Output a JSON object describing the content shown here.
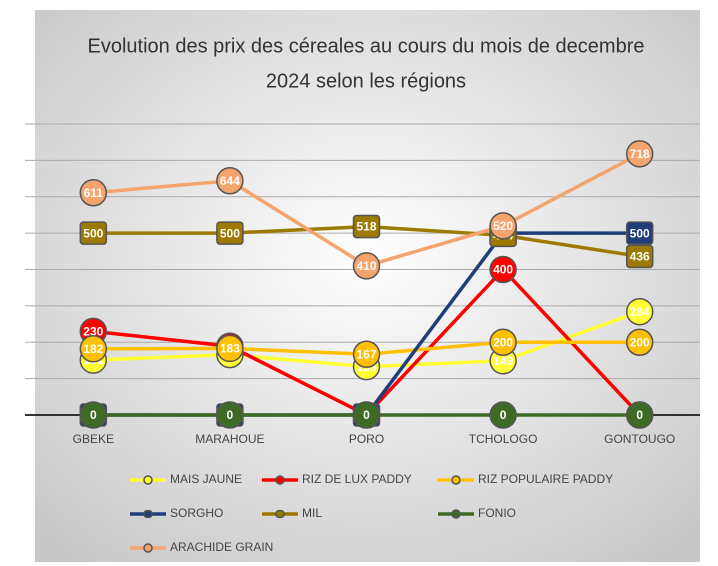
{
  "chart_data": {
    "type": "line",
    "title": [
      "Evolution des prix des céreales au cours du mois de decembre",
      "2024 selon les régions"
    ],
    "categories": [
      "GBEKE",
      "MARAHOUE",
      "PORO",
      "TCHOLOGO",
      "GONTOUGO"
    ],
    "ylim": [
      0,
      800
    ],
    "yticks": [
      0,
      100,
      200,
      300,
      400,
      500,
      600,
      700,
      800
    ],
    "grid": true,
    "legend": "bottom",
    "series": [
      {
        "name": "MAIS JAUNE",
        "color": "#ffff33",
        "marker": "circle",
        "values": [
          151,
          166,
          133,
          149,
          284
        ]
      },
      {
        "name": "RIZ DE LUX PADDY",
        "color": "#ff0000",
        "marker": "circle",
        "values": [
          230,
          189,
          0,
          400,
          0
        ]
      },
      {
        "name": "RIZ POPULAIRE PADDY",
        "color": "#ffc000",
        "marker": "circle",
        "values": [
          182,
          183,
          167,
          200,
          200
        ]
      },
      {
        "name": "SORGHO",
        "color": "#1f3d7a",
        "marker": "square",
        "values": [
          0,
          0,
          0,
          500,
          500
        ]
      },
      {
        "name": "MIL",
        "color": "#9c7a00",
        "marker": "square",
        "values": [
          500,
          500,
          518,
          494,
          436
        ]
      },
      {
        "name": "FONIO",
        "color": "#3d6b25",
        "marker": "circle",
        "values": [
          0,
          0,
          0,
          0,
          0
        ]
      },
      {
        "name": "ARACHIDE GRAIN",
        "color": "#f4a46c",
        "marker": "circle",
        "values": [
          611,
          644,
          410,
          520,
          718
        ]
      }
    ]
  }
}
